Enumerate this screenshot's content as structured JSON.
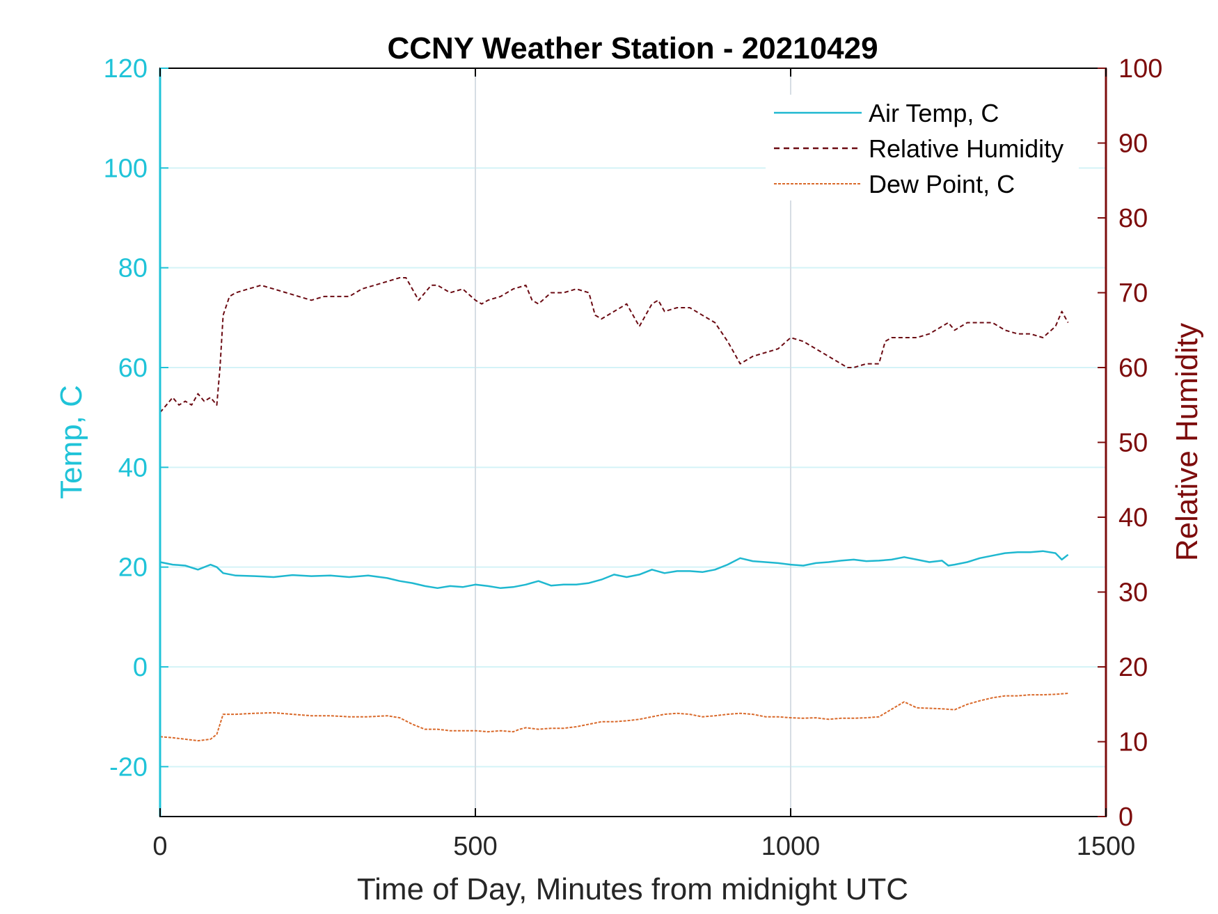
{
  "chart_data": {
    "type": "line",
    "title": "CCNY Weather Station - 20210429",
    "xlabel": "Time of Day, Minutes from midnight UTC",
    "ylabel_left": "Temp, C",
    "ylabel_right": "Relative Humidity",
    "xlim": [
      0,
      1500
    ],
    "ylim_left": [
      -30,
      120
    ],
    "ylim_right": [
      0,
      100
    ],
    "xticks": [
      0,
      500,
      1000,
      1500
    ],
    "xtick_labels": [
      "0",
      "500",
      "1000",
      "1500"
    ],
    "yticks_left": [
      -20,
      0,
      20,
      40,
      60,
      80,
      100,
      120
    ],
    "ytick_labels_left": [
      "-20",
      "0",
      "20",
      "40",
      "60",
      "80",
      "100",
      "120"
    ],
    "yticks_right": [
      0,
      10,
      20,
      30,
      40,
      50,
      60,
      70,
      80,
      90,
      100
    ],
    "ytick_labels_right": [
      "0",
      "10",
      "20",
      "30",
      "40",
      "50",
      "60",
      "70",
      "80",
      "90",
      "100"
    ],
    "grid": true,
    "legend_position": "top-right",
    "colors": {
      "left_axis": "#1fc3d8",
      "right_axis": "#7d0c0c",
      "air_temp": "#1fb8d0",
      "humidity": "#6b0a12",
      "dew_point": "#d9692a",
      "grid_h": "#d4f3f7",
      "grid_v": "#d6dde4"
    },
    "series": [
      {
        "name": "Air Temp, C",
        "axis": "left",
        "style": "solid",
        "x": [
          0,
          20,
          40,
          60,
          80,
          90,
          100,
          120,
          150,
          180,
          210,
          240,
          270,
          300,
          330,
          360,
          380,
          400,
          420,
          440,
          460,
          480,
          500,
          520,
          540,
          560,
          580,
          600,
          620,
          640,
          660,
          680,
          700,
          720,
          740,
          760,
          780,
          800,
          820,
          840,
          860,
          880,
          900,
          920,
          940,
          960,
          980,
          1000,
          1020,
          1040,
          1060,
          1080,
          1100,
          1120,
          1140,
          1160,
          1180,
          1200,
          1220,
          1240,
          1250,
          1260,
          1280,
          1300,
          1320,
          1340,
          1360,
          1380,
          1400,
          1420,
          1430,
          1440
        ],
        "values": [
          21,
          20.5,
          20.3,
          19.5,
          20.5,
          20,
          18.8,
          18.3,
          18.2,
          18,
          18.4,
          18.2,
          18.3,
          18,
          18.3,
          17.8,
          17.2,
          16.8,
          16.2,
          15.8,
          16.2,
          16,
          16.5,
          16.2,
          15.8,
          16,
          16.5,
          17.2,
          16.3,
          16.5,
          16.5,
          16.8,
          17.5,
          18.5,
          18,
          18.5,
          19.5,
          18.8,
          19.2,
          19.2,
          19,
          19.5,
          20.5,
          21.8,
          21.2,
          21,
          20.8,
          20.5,
          20.3,
          20.8,
          21,
          21.3,
          21.5,
          21.2,
          21.3,
          21.5,
          22,
          21.5,
          21,
          21.3,
          20.3,
          20.5,
          21,
          21.8,
          22.3,
          22.8,
          23,
          23,
          23.2,
          22.8,
          21.5,
          22.5
        ]
      },
      {
        "name": "Relative Humidity",
        "axis": "right",
        "style": "dashed",
        "x": [
          0,
          10,
          20,
          30,
          40,
          50,
          60,
          70,
          80,
          90,
          95,
          100,
          110,
          120,
          140,
          160,
          180,
          200,
          220,
          240,
          260,
          280,
          300,
          320,
          340,
          360,
          380,
          390,
          400,
          410,
          420,
          430,
          440,
          460,
          480,
          500,
          510,
          520,
          540,
          560,
          580,
          590,
          600,
          620,
          640,
          660,
          680,
          690,
          700,
          720,
          740,
          750,
          760,
          780,
          790,
          800,
          820,
          840,
          860,
          880,
          900,
          910,
          920,
          940,
          960,
          980,
          1000,
          1020,
          1040,
          1060,
          1080,
          1090,
          1100,
          1120,
          1140,
          1150,
          1160,
          1180,
          1200,
          1220,
          1240,
          1250,
          1260,
          1280,
          1300,
          1320,
          1340,
          1360,
          1380,
          1400,
          1420,
          1430,
          1440
        ],
        "values": [
          54,
          55,
          56,
          55,
          55.5,
          55,
          56.5,
          55.5,
          56,
          55,
          60,
          67,
          69.5,
          70,
          70.5,
          71,
          70.5,
          70,
          69.5,
          69,
          69.5,
          69.5,
          69.5,
          70.5,
          71,
          71.5,
          72,
          72,
          70.5,
          69,
          70,
          71,
          71,
          70,
          70.5,
          69,
          68.5,
          69,
          69.5,
          70.5,
          71,
          69,
          68.5,
          70,
          70,
          70.5,
          70,
          67,
          66.5,
          67.5,
          68.5,
          67,
          65.5,
          68.5,
          69,
          67.5,
          68,
          68,
          67,
          66,
          63.5,
          62,
          60.5,
          61.5,
          62,
          62.5,
          64,
          63.5,
          62.5,
          61.5,
          60.5,
          60,
          60,
          60.5,
          60.5,
          63.5,
          64,
          64,
          64,
          64.5,
          65.5,
          66,
          65,
          66,
          66,
          66,
          65,
          64.5,
          64.5,
          64,
          65.5,
          67.5,
          66
        ]
      },
      {
        "name": "Dew Point, C",
        "axis": "left",
        "style": "dashed",
        "x": [
          0,
          20,
          40,
          60,
          80,
          90,
          100,
          120,
          150,
          180,
          210,
          240,
          270,
          300,
          330,
          360,
          380,
          400,
          420,
          440,
          460,
          480,
          500,
          520,
          540,
          560,
          570,
          580,
          600,
          620,
          640,
          660,
          680,
          700,
          720,
          740,
          760,
          780,
          800,
          820,
          840,
          860,
          880,
          900,
          920,
          940,
          960,
          980,
          1000,
          1020,
          1040,
          1060,
          1080,
          1100,
          1120,
          1140,
          1160,
          1180,
          1200,
          1220,
          1240,
          1260,
          1280,
          1300,
          1320,
          1340,
          1360,
          1380,
          1400,
          1420,
          1440
        ],
        "values": [
          -14,
          -14.2,
          -14.5,
          -14.8,
          -14.5,
          -13.5,
          -9.5,
          -9.5,
          -9.3,
          -9.2,
          -9.5,
          -9.8,
          -9.8,
          -10,
          -10,
          -9.8,
          -10.2,
          -11.5,
          -12.5,
          -12.5,
          -12.8,
          -12.8,
          -12.8,
          -13,
          -12.8,
          -13,
          -12.5,
          -12.2,
          -12.5,
          -12.3,
          -12.3,
          -12,
          -11.5,
          -11,
          -11,
          -10.8,
          -10.5,
          -10,
          -9.5,
          -9.3,
          -9.5,
          -10,
          -9.8,
          -9.5,
          -9.3,
          -9.5,
          -10,
          -10,
          -10.2,
          -10.3,
          -10.2,
          -10.5,
          -10.3,
          -10.3,
          -10.2,
          -10,
          -8.5,
          -7,
          -8.2,
          -8.3,
          -8.4,
          -8.6,
          -7.5,
          -6.8,
          -6.2,
          -5.8,
          -5.8,
          -5.6,
          -5.6,
          -5.5,
          -5.3
        ]
      }
    ]
  }
}
